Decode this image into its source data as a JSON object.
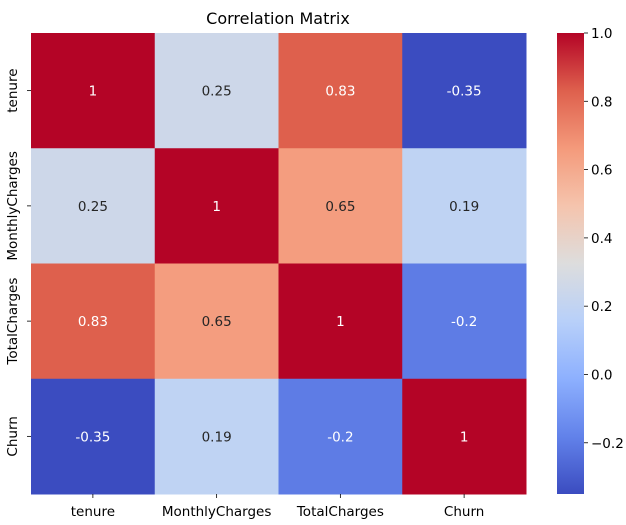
{
  "chart_data": {
    "type": "heatmap",
    "title": "Correlation Matrix",
    "xlabel": "",
    "ylabel": "",
    "x_categories": [
      "tenure",
      "MonthlyCharges",
      "TotalCharges",
      "Churn"
    ],
    "y_categories": [
      "tenure",
      "MonthlyCharges",
      "TotalCharges",
      "Churn"
    ],
    "values": [
      [
        1,
        0.25,
        0.83,
        -0.35
      ],
      [
        0.25,
        1,
        0.65,
        0.19
      ],
      [
        0.83,
        0.65,
        1,
        -0.2
      ],
      [
        -0.35,
        0.19,
        -0.2,
        1
      ]
    ],
    "cell_labels": [
      [
        "1",
        "0.25",
        "0.83",
        "-0.35"
      ],
      [
        "0.25",
        "1",
        "0.65",
        "0.19"
      ],
      [
        "0.83",
        "0.65",
        "1",
        "-0.2"
      ],
      [
        "-0.35",
        "0.19",
        "-0.2",
        "1"
      ]
    ],
    "colormap": "coolwarm",
    "colorbar": {
      "vmin": -0.35,
      "vmax": 1.0,
      "ticks": [
        1.0,
        0.8,
        0.6,
        0.4,
        0.2,
        0.0,
        -0.2
      ],
      "tick_labels": [
        "1.0",
        "0.8",
        "0.6",
        "0.4",
        "0.2",
        "0.0",
        "−0.2"
      ]
    },
    "grid": false,
    "legend": "colorbar-right"
  }
}
